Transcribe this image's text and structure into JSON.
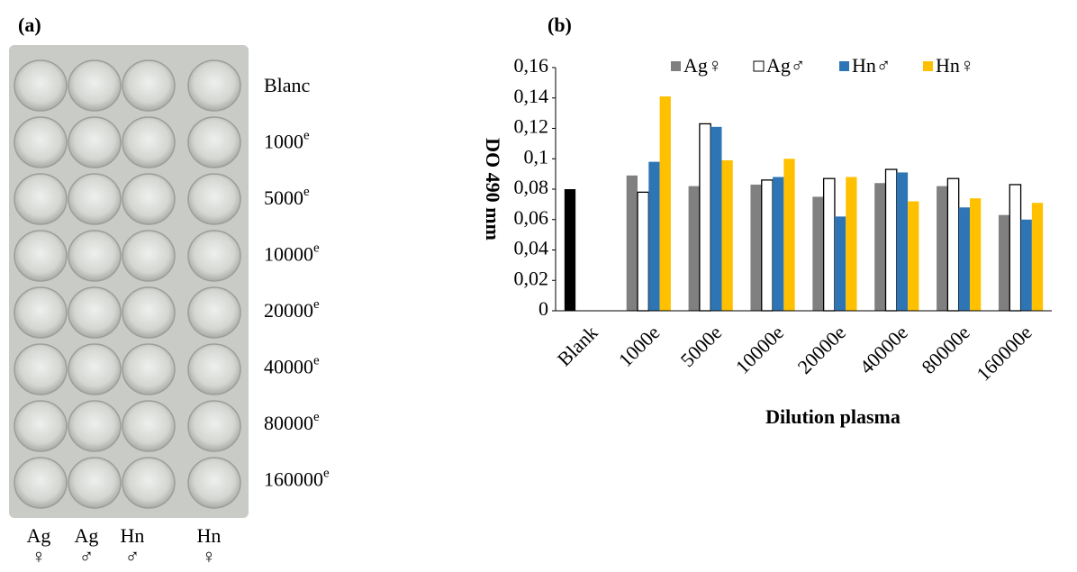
{
  "panel_a": {
    "label": "(a)",
    "row_labels": [
      {
        "text": "Blanc"
      },
      {
        "text": "1000",
        "sup": "e"
      },
      {
        "text": "5000",
        "sup": "e"
      },
      {
        "text": "10000",
        "sup": "e"
      },
      {
        "text": "20000",
        "sup": "e"
      },
      {
        "text": "40000",
        "sup": "e"
      },
      {
        "text": "80000",
        "sup": "e"
      },
      {
        "text": "160000",
        "sup": "e"
      }
    ],
    "column_labels": [
      {
        "name": "Ag",
        "symbol": "♀"
      },
      {
        "name": "Ag",
        "symbol": "♂"
      },
      {
        "name": "Hn",
        "symbol": "♂"
      },
      {
        "name": "Hn",
        "symbol": "♀"
      }
    ]
  },
  "panel_b_label": "(b)",
  "chart_data": {
    "type": "bar",
    "x_label": "Dilution plasma",
    "y_label": "DO 490 mm",
    "categories": [
      "Blank",
      "1000e",
      "5000e",
      "10000e",
      "20000e",
      "40000e",
      "80000e",
      "160000e"
    ],
    "series": [
      {
        "name": "Ag♀",
        "color": "#808080",
        "values": [
          0.08,
          0.089,
          0.082,
          0.083,
          0.075,
          0.084,
          0.082,
          0.063
        ],
        "point_colors": [
          "#000000",
          null,
          null,
          null,
          null,
          null,
          null,
          null
        ]
      },
      {
        "name": "Ag♂",
        "color": "#ffffff",
        "values": [
          null,
          0.078,
          0.123,
          0.086,
          0.087,
          0.093,
          0.087,
          0.083
        ]
      },
      {
        "name": "Hn♂",
        "color": "#2e75b6",
        "values": [
          null,
          0.098,
          0.121,
          0.088,
          0.062,
          0.091,
          0.068,
          0.06
        ]
      },
      {
        "name": "Hn♀",
        "color": "#ffc000",
        "values": [
          null,
          0.141,
          0.099,
          0.1,
          0.088,
          0.072,
          0.074,
          0.071
        ]
      }
    ],
    "ylim": [
      0,
      0.16
    ],
    "yticks": [
      0,
      {
        "value": 0.02,
        "label": "0,02"
      },
      {
        "value": 0.04,
        "label": "0,04"
      },
      {
        "value": 0.06,
        "label": "0,06"
      },
      {
        "value": 0.08,
        "label": "0,08"
      },
      {
        "value": 0.1,
        "label": "0,1"
      },
      {
        "value": 0.12,
        "label": "0,12"
      },
      {
        "value": 0.14,
        "label": "0,14"
      },
      {
        "value": 0.16,
        "label": "0,16"
      }
    ],
    "legend": "top",
    "grid": false
  }
}
